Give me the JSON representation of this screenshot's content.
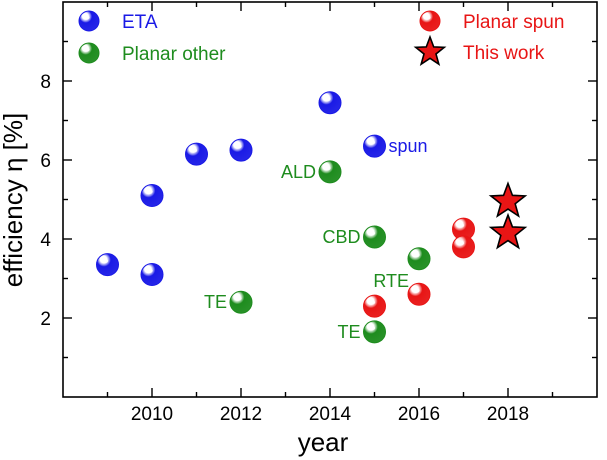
{
  "chart_data": {
    "type": "scatter",
    "xlabel": "year",
    "ylabel": "efficiency η [%]",
    "xlim": [
      2008,
      2020
    ],
    "ylim": [
      0,
      10
    ],
    "xticks": [
      "2010",
      "2012",
      "2014",
      "2016",
      "2018"
    ],
    "yticks": [
      "2",
      "4",
      "6",
      "8"
    ],
    "grid": false,
    "legend": {
      "placement": "top-left and top-right"
    },
    "series": [
      {
        "name": "ETA",
        "color": "#1a1ae6",
        "marker": "sphere",
        "points": [
          {
            "x": 2009,
            "y": 3.35
          },
          {
            "x": 2010,
            "y": 3.1
          },
          {
            "x": 2010,
            "y": 5.1
          },
          {
            "x": 2011,
            "y": 6.15
          },
          {
            "x": 2012,
            "y": 6.25
          },
          {
            "x": 2014,
            "y": 7.45
          },
          {
            "x": 2015,
            "y": 6.35
          }
        ]
      },
      {
        "name": "Planar other",
        "color": "#1e8c1e",
        "marker": "sphere",
        "points": [
          {
            "x": 2012,
            "y": 2.4
          },
          {
            "x": 2014,
            "y": 5.7
          },
          {
            "x": 2015,
            "y": 4.05
          },
          {
            "x": 2015,
            "y": 1.65
          },
          {
            "x": 2016,
            "y": 3.5
          }
        ]
      },
      {
        "name": "Planar spun",
        "color": "#e81515",
        "marker": "sphere",
        "points": [
          {
            "x": 2015,
            "y": 2.3
          },
          {
            "x": 2016,
            "y": 2.6
          },
          {
            "x": 2017,
            "y": 4.25
          },
          {
            "x": 2017,
            "y": 3.8
          }
        ]
      },
      {
        "name": "This work",
        "color": "#e81515",
        "marker": "star",
        "points": [
          {
            "x": 2018,
            "y": 4.95
          },
          {
            "x": 2018,
            "y": 4.15
          }
        ]
      }
    ],
    "annotations": [
      {
        "text": "spun",
        "x": 2015,
        "y": 6.35,
        "color": "#1a1ae6",
        "side": "right"
      },
      {
        "text": "ALD",
        "x": 2014,
        "y": 5.7,
        "color": "#1e8c1e",
        "side": "left"
      },
      {
        "text": "CBD",
        "x": 2015,
        "y": 4.05,
        "color": "#1e8c1e",
        "side": "left"
      },
      {
        "text": "RTE",
        "x": 2016,
        "y": 3.5,
        "color": "#1e8c1e",
        "side": "left-below"
      },
      {
        "text": "TE",
        "x": 2012,
        "y": 2.4,
        "color": "#1e8c1e",
        "side": "left"
      },
      {
        "text": "TE",
        "x": 2015,
        "y": 1.65,
        "color": "#1e8c1e",
        "side": "left"
      }
    ]
  }
}
